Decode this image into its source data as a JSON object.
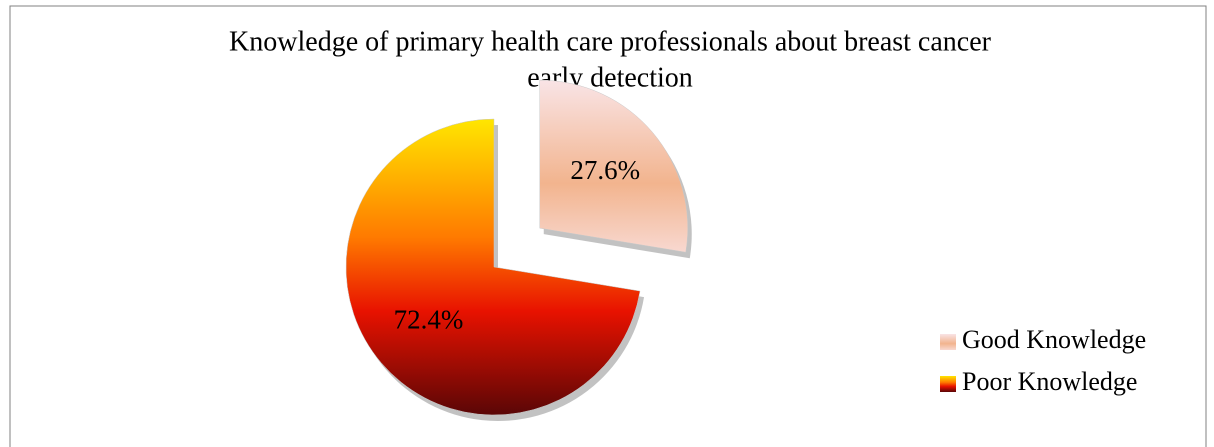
{
  "chart_data": {
    "type": "pie",
    "title": [
      "Knowledge of primary health care professionals about breast cancer",
      "early detection"
    ],
    "categories": [
      "Good Knowledge",
      "Poor Knowledge"
    ],
    "values": [
      27.6,
      72.4
    ],
    "value_labels": [
      "27.6%",
      "72.4%"
    ],
    "colors": [
      "#f2b48e",
      "#e81200"
    ],
    "legend": "right",
    "explode": [
      true,
      false
    ]
  }
}
